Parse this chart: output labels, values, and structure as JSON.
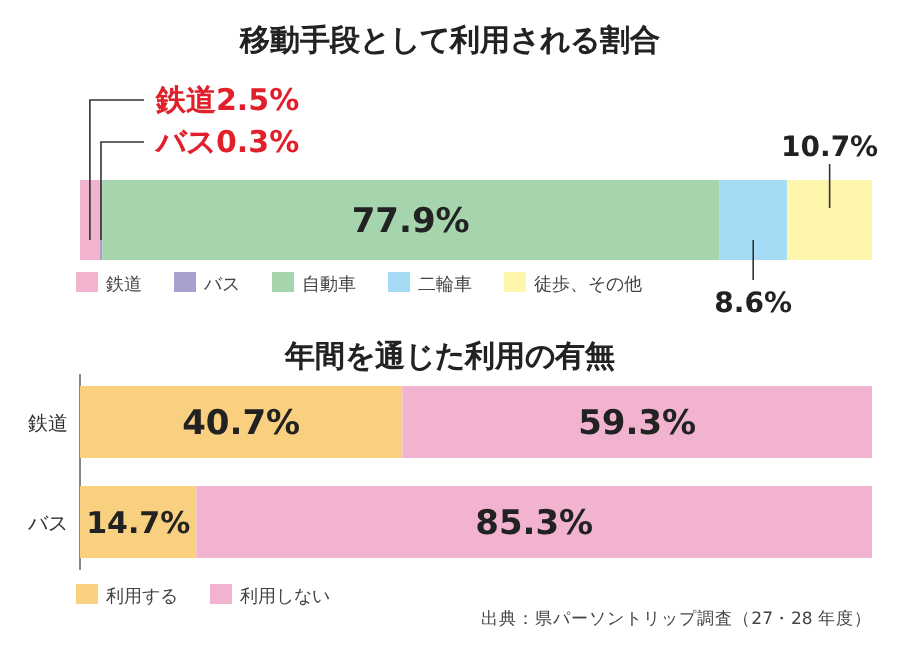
{
  "chart_data": [
    {
      "type": "bar",
      "orientation": "horizontal",
      "stacked": true,
      "title": "移動手段として利用される割合",
      "categories": [
        null
      ],
      "legend": "bottom left",
      "series": [
        {
          "name": "鉄道",
          "color": "#f2b3cf",
          "values": [
            2.5
          ],
          "value_labels": [
            "鉄道2.5%"
          ]
        },
        {
          "name": "バス",
          "color": "#a99fcf",
          "values": [
            0.3
          ],
          "value_labels": [
            "バス0.3%"
          ]
        },
        {
          "name": "自動車",
          "color": "#a6d5ad",
          "values": [
            77.9
          ],
          "value_labels": [
            "77.9%"
          ]
        },
        {
          "name": "二輪車",
          "color": "#a6dbf5",
          "values": [
            8.6
          ],
          "value_labels": [
            "8.6%"
          ]
        },
        {
          "name": "徒歩、その他",
          "color": "#fff6ae",
          "values": [
            10.7
          ],
          "value_labels": [
            "10.7%"
          ]
        }
      ]
    },
    {
      "type": "bar",
      "orientation": "horizontal",
      "stacked": true,
      "title": "年間を通じた利用の有無",
      "categories": [
        "鉄道",
        "バス"
      ],
      "legend": "bottom left",
      "annotations": [
        "出典：県パーソントリップ調査（27・28 年度）"
      ],
      "series": [
        {
          "name": "利用する",
          "color": "#f9cf80",
          "values": [
            40.7,
            14.7
          ],
          "value_labels": [
            "40.7%",
            "14.7%"
          ]
        },
        {
          "name": "利用しない",
          "color": "#f2b3d0",
          "values": [
            59.3,
            85.3
          ],
          "value_labels": [
            "59.3%",
            "85.3%"
          ]
        }
      ]
    }
  ]
}
